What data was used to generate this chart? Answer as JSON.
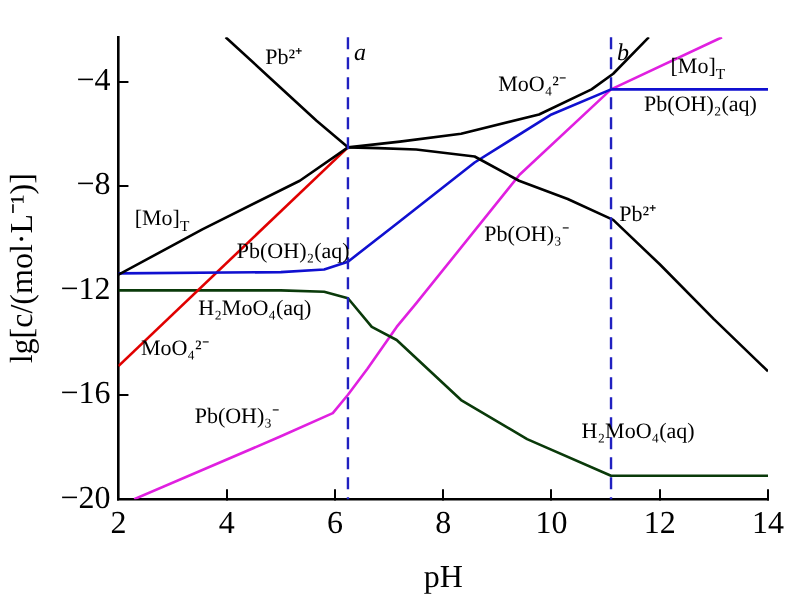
{
  "chart_data": {
    "type": "line",
    "xlabel": "pH",
    "ylabel": "lg[c/(mol·L⁻¹)]",
    "xlim": [
      2,
      14
    ],
    "ylim": [
      -20,
      -2.3
    ],
    "xticks": [
      2,
      4,
      6,
      8,
      10,
      12,
      14
    ],
    "yticks": [
      -20,
      -16,
      -12,
      -8,
      -4
    ],
    "grid": false,
    "legend": false,
    "marker": "none",
    "line_style": "solid",
    "series": [
      {
        "color": "#000000",
        "x": [
          3.98,
          4.8,
          5.66,
          6.24,
          6.8,
          7.5,
          8.58,
          9.4,
          10.3,
          11.14,
          12,
          13,
          14
        ],
        "values": [
          -2.3,
          -3.86,
          -5.5,
          -6.52,
          -6.55,
          -6.6,
          -6.87,
          -7.8,
          -8.5,
          -9.3,
          -11,
          -13.1,
          -15.1
        ]
      },
      {
        "color": "#000000",
        "x": [
          2,
          3.55,
          5.35,
          6.24,
          7.2,
          8.33,
          9.77,
          10.74,
          11.14,
          11.8
        ],
        "values": [
          -11.4,
          -9.66,
          -7.8,
          -6.52,
          -6.3,
          -6.0,
          -5.26,
          -4.3,
          -3.7,
          -2.3
        ]
      },
      {
        "color": "#1010d0",
        "x": [
          2,
          5,
          5.8,
          6.24,
          7.14,
          8.58,
          10.0,
          11.1,
          14
        ],
        "values": [
          -11.35,
          -11.3,
          -11.2,
          -10.9,
          -9.45,
          -7.1,
          -5.26,
          -4.3,
          -4.3
        ]
      },
      {
        "color": "#e00000",
        "x": [
          2,
          6.24
        ],
        "values": [
          -14.9,
          -6.52
        ]
      },
      {
        "color": "#0a3a0a",
        "x": [
          2,
          5,
          5.8,
          6.24,
          6.68,
          7.14,
          8.33,
          9.55,
          11.1,
          14
        ],
        "values": [
          -12,
          -12,
          -12.05,
          -12.3,
          -13.4,
          -13.9,
          -16.2,
          -17.7,
          -19.1,
          -19.1
        ]
      },
      {
        "color": "#e020e0",
        "x": [
          2.29,
          4.99,
          5.96,
          6.24,
          6.6,
          7.14,
          7.5,
          9.41,
          11.1,
          13.15
        ],
        "values": [
          -20,
          -17.6,
          -16.7,
          -16.0,
          -15.0,
          -13.4,
          -12.5,
          -7.57,
          -4.3,
          -2.3
        ]
      }
    ],
    "ref_lines": [
      {
        "axis": "x",
        "value": 6.24,
        "label": "a",
        "color": "#2020c0",
        "line_style": "dashed"
      },
      {
        "axis": "x",
        "value": 11.1,
        "label": "b",
        "color": "#2020c0",
        "line_style": "dashed"
      }
    ],
    "annotations": [
      "Pb²⁺",
      "MoO₄²⁻",
      "[Mo]$_{T}$",
      "Pb(OH)₂(aq)",
      "Pb²⁺",
      "Pb(OH)₃⁻",
      "[Mo]$_{T}$",
      "Pb(OH)₂(aq)",
      "H₂MoO₄(aq)",
      "MoO₄²⁻",
      "Pb(OH)₃⁻",
      "H₂MoO₄(aq)"
    ]
  }
}
